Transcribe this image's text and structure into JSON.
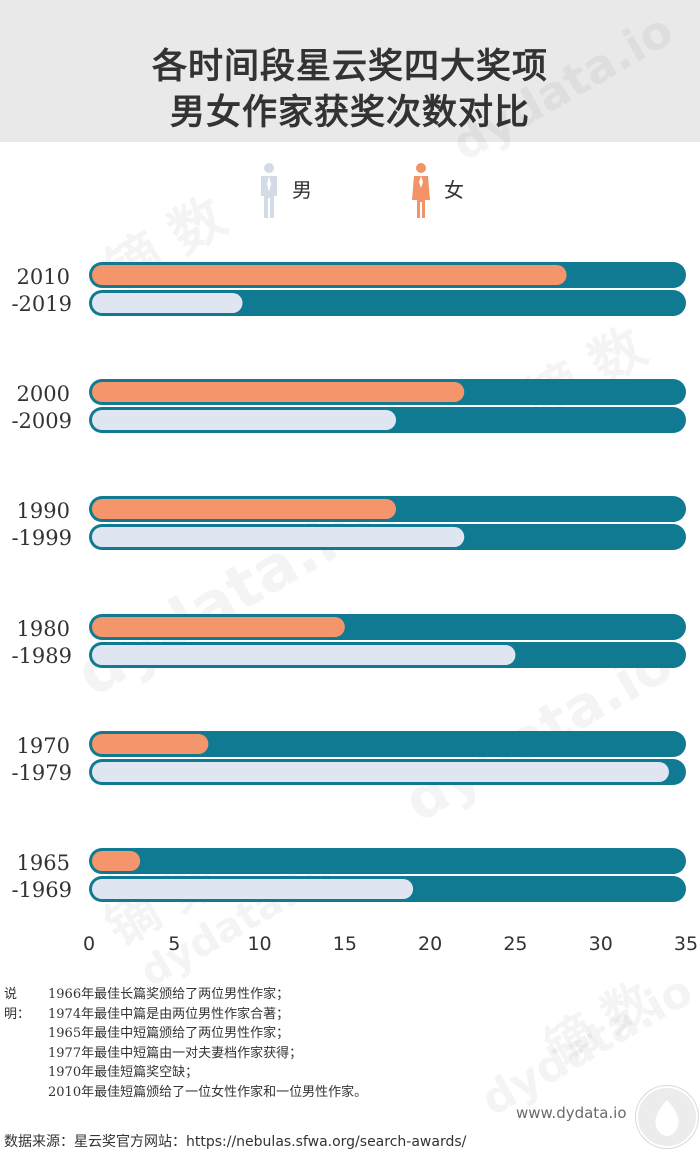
{
  "header": {
    "title_line1": "各时间段星云奖四大奖项",
    "title_line2": "男女作家获奖次数对比"
  },
  "legend": {
    "male_label": "男",
    "female_label": "女",
    "male_icon": "male-person-icon",
    "female_icon": "female-person-icon"
  },
  "colors": {
    "female_bar": "#f4956b",
    "male_bar": "#dfe6f1",
    "track": "#0f7a92",
    "male_icon": "#d3dbe6",
    "female_icon": "#f29468"
  },
  "chart_data": {
    "type": "bar",
    "orientation": "horizontal",
    "categories": [
      [
        "2010",
        "-2019"
      ],
      [
        "2000",
        "-2009"
      ],
      [
        "1990",
        "-1999"
      ],
      [
        "1980",
        "-1989"
      ],
      [
        "1970",
        "-1979"
      ],
      [
        "1965",
        "-1969"
      ]
    ],
    "series": [
      {
        "name": "女",
        "values": [
          28,
          22,
          18,
          15,
          7,
          3
        ]
      },
      {
        "name": "男",
        "values": [
          9,
          18,
          22,
          25,
          34,
          19
        ]
      }
    ],
    "total_track": 35,
    "xlim": [
      0,
      35
    ],
    "xticks": [
      "0",
      "5",
      "10",
      "15",
      "20",
      "25",
      "30",
      "35"
    ],
    "grid": false,
    "legend_position": "top-center"
  },
  "notes": {
    "prefix": "说明：",
    "lines": [
      "1966年最佳长篇奖颁给了两位男性作家；",
      "1974年最佳中篇是由两位男性作家合著；",
      "1965年最佳中短篇颁给了两位男性作家；",
      "1977年最佳中短篇由一对夫妻档作家获得；",
      "1970年最佳短篇奖空缺；",
      "2010年最佳短篇颁给了一位女性作家和一位男性作家。"
    ]
  },
  "watermarks": [
    "dydata.io",
    "镝 数"
  ],
  "site": "www.dydata.io",
  "source": "数据来源：星云奖官方网站：https://nebulas.sfwa.org/search-awards/"
}
